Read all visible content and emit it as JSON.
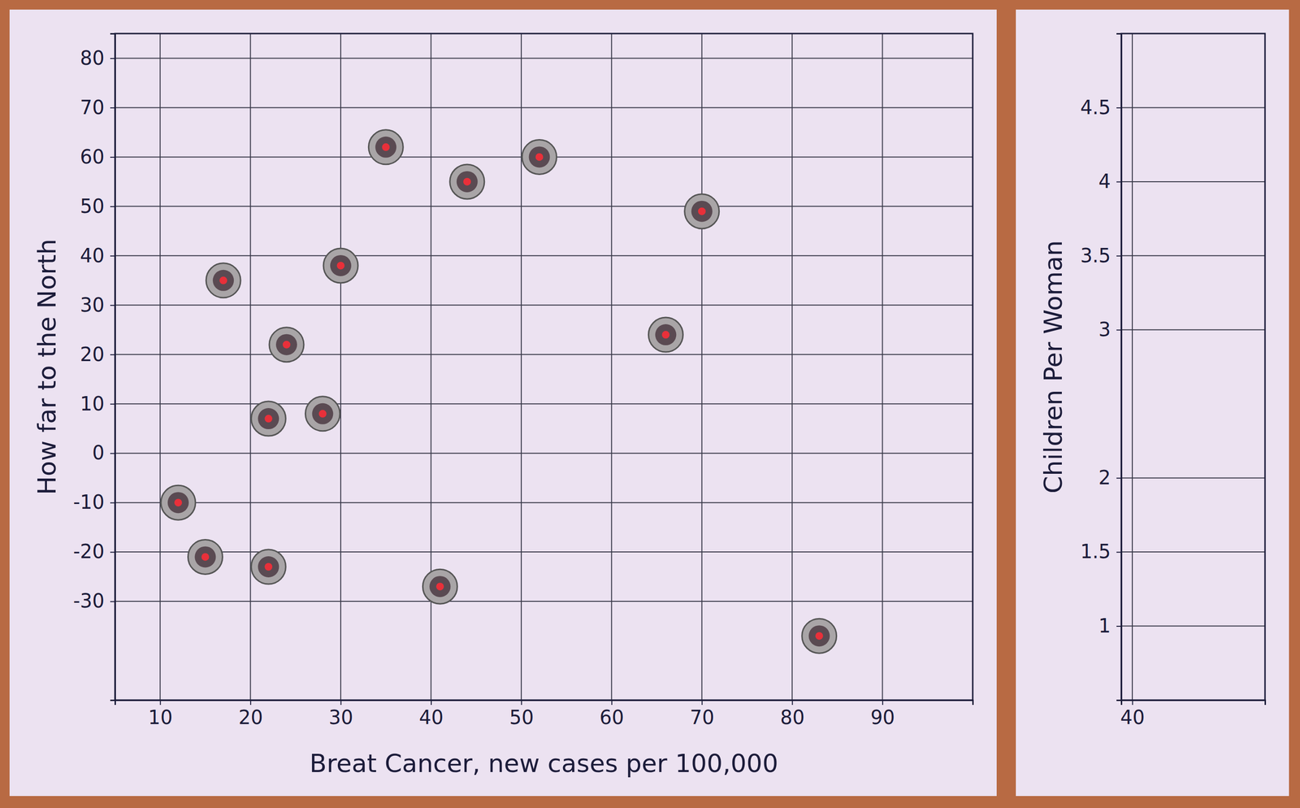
{
  "chart_data": [
    {
      "type": "scatter",
      "x_label": "Breat Cancer, new cases per 100,000",
      "y_label": "How far to the North",
      "x": [
        17,
        30,
        35,
        44,
        52,
        70,
        66,
        83,
        41,
        15,
        12,
        22,
        22,
        24,
        28
      ],
      "y": [
        35,
        38,
        62,
        55,
        60,
        49,
        24,
        -37,
        -27,
        -21,
        -10,
        -23,
        7,
        22,
        8
      ],
      "xlim": [
        5,
        100
      ],
      "ylim": [
        -50,
        85
      ],
      "xticks": [
        10,
        20,
        30,
        40,
        50,
        60,
        70,
        80,
        90
      ],
      "yticks": [
        -30,
        -20,
        -10,
        0,
        10,
        20,
        30,
        40,
        50,
        60,
        70,
        80
      ],
      "grid": true,
      "marker": "circle",
      "color": "#a9a5a7"
    },
    {
      "type": "scatter",
      "y_label": "Children Per Woman",
      "x": [],
      "y": [],
      "xlim": [
        35,
        100
      ],
      "ylim": [
        0.5,
        5
      ],
      "xticks": [
        40
      ],
      "yticks": [
        1,
        1.5,
        2,
        3,
        3.5,
        4,
        4.5
      ],
      "grid": true,
      "marker": "circle",
      "color": "#a9a5a7"
    }
  ]
}
